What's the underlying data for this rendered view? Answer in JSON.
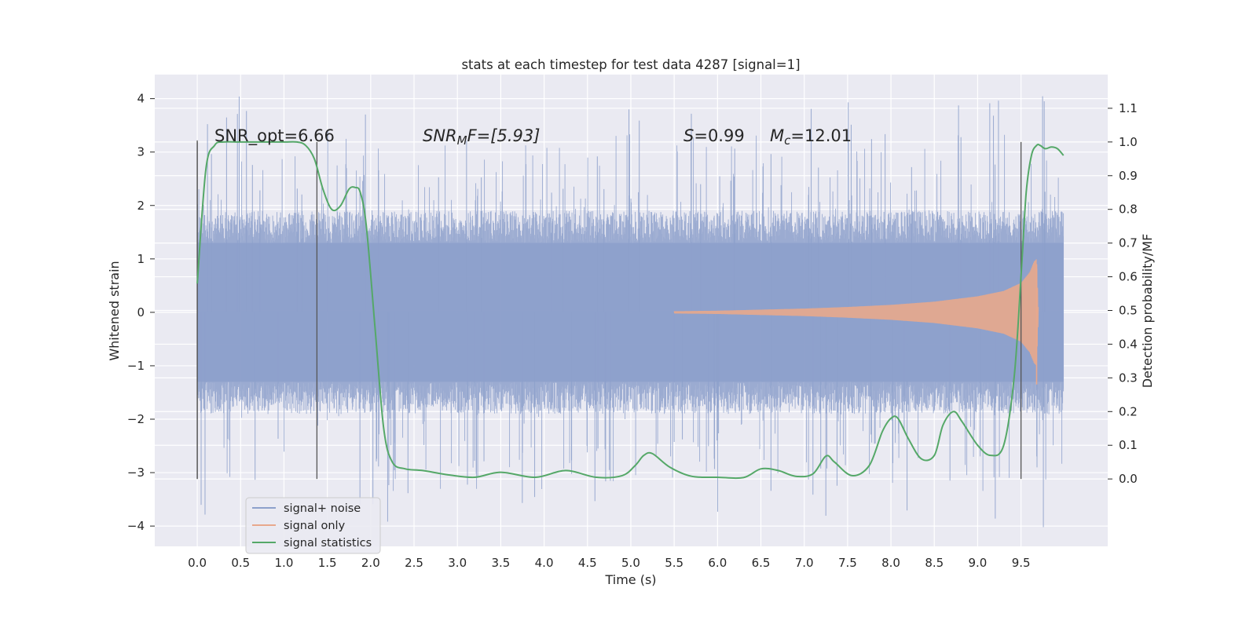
{
  "chart_data": {
    "type": "line",
    "title": "stats at each timestep for test data 4287 [signal=1]",
    "xlabel": "Time (s)",
    "ylabel": "Whitened strain",
    "ylabel_right": "Detection probability/MF",
    "xlim": [
      -0.49,
      10.5
    ],
    "ylim": [
      -4.38,
      4.45
    ],
    "ylim_right": [
      -0.2,
      1.2
    ],
    "x_ticks": [
      "0.0",
      "0.5",
      "1.0",
      "1.5",
      "2.0",
      "2.5",
      "3.0",
      "3.5",
      "4.0",
      "4.5",
      "5.0",
      "5.5",
      "6.0",
      "6.5",
      "7.0",
      "7.5",
      "8.0",
      "8.5",
      "9.0",
      "9.5"
    ],
    "y_ticks_left": [
      "−4",
      "−3",
      "−2",
      "−1",
      "0",
      "1",
      "2",
      "3",
      "4"
    ],
    "y_ticks_right": [
      "0.0",
      "0.1",
      "0.2",
      "0.3",
      "0.4",
      "0.5",
      "0.6",
      "0.7",
      "0.8",
      "0.9",
      "1.0",
      "1.1"
    ],
    "grid": true,
    "legend_position": "lower-left",
    "annotations": {
      "snr_opt": "SNR_opt=6.66",
      "snr_mf_main": "SNR",
      "snr_mf_sub": "M",
      "snr_mf_rest": "F=[5.93]",
      "s_main": "S",
      "s_rest": "=0.99",
      "mc_main": "M",
      "mc_sub": "c",
      "mc_rest": "=12.01"
    },
    "vertical_markers_x": [
      0.0,
      1.38,
      9.5
    ],
    "series": [
      {
        "name": "signal+ noise",
        "color": "#8da0cb",
        "x_range": [
          0.0,
          9.99
        ],
        "envelope_core": [
          -1.3,
          1.3
        ],
        "peak_range": [
          -4.05,
          4.05
        ]
      },
      {
        "name": "signal only",
        "color": "#e8a88c",
        "x": [
          5.5,
          6.0,
          6.5,
          7.0,
          7.5,
          8.0,
          8.5,
          9.0,
          9.3,
          9.5,
          9.6,
          9.65,
          9.68,
          9.7
        ],
        "amplitude": [
          0.02,
          0.03,
          0.05,
          0.07,
          0.1,
          0.14,
          0.2,
          0.3,
          0.4,
          0.55,
          0.75,
          0.95,
          1.0,
          0.1
        ]
      },
      {
        "name": "signal statistics",
        "color": "#55a868",
        "axis": "right",
        "x": [
          0.0,
          0.1,
          0.2,
          0.3,
          0.5,
          0.8,
          1.0,
          1.15,
          1.25,
          1.35,
          1.45,
          1.55,
          1.65,
          1.75,
          1.82,
          1.88,
          1.95,
          2.05,
          2.15,
          2.25,
          2.4,
          2.6,
          2.9,
          3.2,
          3.5,
          3.9,
          4.25,
          4.6,
          4.9,
          5.05,
          5.15,
          5.25,
          5.45,
          5.7,
          6.0,
          6.3,
          6.5,
          6.7,
          6.9,
          7.1,
          7.25,
          7.35,
          7.55,
          7.75,
          7.9,
          8.0,
          8.08,
          8.2,
          8.35,
          8.5,
          8.6,
          8.72,
          8.82,
          9.0,
          9.15,
          9.3,
          9.42,
          9.5,
          9.56,
          9.62,
          9.68,
          9.72,
          9.78,
          9.85,
          9.92,
          9.99
        ],
        "y": [
          0.58,
          0.92,
          0.99,
          1.0,
          1.0,
          1.0,
          1.0,
          1.0,
          0.99,
          0.95,
          0.86,
          0.8,
          0.81,
          0.86,
          0.865,
          0.85,
          0.75,
          0.45,
          0.15,
          0.05,
          0.03,
          0.025,
          0.012,
          0.005,
          0.02,
          0.005,
          0.025,
          0.005,
          0.01,
          0.04,
          0.07,
          0.075,
          0.035,
          0.008,
          0.005,
          0.004,
          0.03,
          0.025,
          0.008,
          0.015,
          0.068,
          0.05,
          0.01,
          0.04,
          0.14,
          0.18,
          0.18,
          0.12,
          0.06,
          0.07,
          0.16,
          0.2,
          0.17,
          0.1,
          0.07,
          0.1,
          0.3,
          0.6,
          0.85,
          0.96,
          0.99,
          0.99,
          0.98,
          0.985,
          0.98,
          0.96
        ]
      }
    ]
  }
}
